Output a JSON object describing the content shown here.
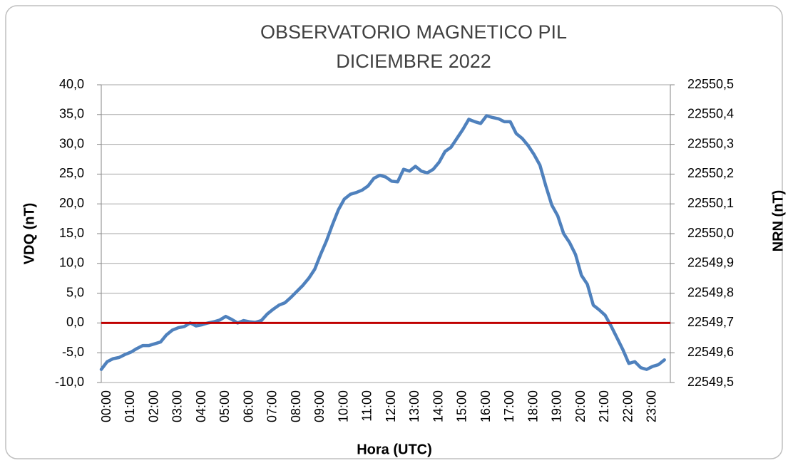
{
  "chart_data": {
    "type": "line",
    "title": "OBSERVATORIO MAGNETICO PIL",
    "subtitle": "DICIEMBRE 2022",
    "y_label": "VDQ (nT)",
    "y2_label": "NRN (nT)",
    "x_label": "Hora (UTC)",
    "xlim": [
      0,
      24
    ],
    "xticks": [
      {
        "value": 0,
        "label": "00:00"
      },
      {
        "value": 1,
        "label": "01:00"
      },
      {
        "value": 2,
        "label": "02:00"
      },
      {
        "value": 3,
        "label": "03:00"
      },
      {
        "value": 4,
        "label": "04:00"
      },
      {
        "value": 5,
        "label": "05:00"
      },
      {
        "value": 6,
        "label": "06:00"
      },
      {
        "value": 7,
        "label": "07:00"
      },
      {
        "value": 8,
        "label": "08:00"
      },
      {
        "value": 9,
        "label": "09:00"
      },
      {
        "value": 10,
        "label": "10:00"
      },
      {
        "value": 11,
        "label": "11:00"
      },
      {
        "value": 12,
        "label": "12:00"
      },
      {
        "value": 13,
        "label": "13:00"
      },
      {
        "value": 14,
        "label": "14:00"
      },
      {
        "value": 15,
        "label": "15:00"
      },
      {
        "value": 16,
        "label": "16:00"
      },
      {
        "value": 17,
        "label": "17:00"
      },
      {
        "value": 18,
        "label": "18:00"
      },
      {
        "value": 19,
        "label": "19:00"
      },
      {
        "value": 20,
        "label": "20:00"
      },
      {
        "value": 21,
        "label": "21:00"
      },
      {
        "value": 22,
        "label": "22:00"
      },
      {
        "value": 23,
        "label": "23:00"
      }
    ],
    "ylim": [
      -10,
      40
    ],
    "yticks": [
      {
        "value": -10,
        "label": "-10,0"
      },
      {
        "value": -5,
        "label": "-5,0"
      },
      {
        "value": 0,
        "label": "0,0"
      },
      {
        "value": 5,
        "label": "5,0"
      },
      {
        "value": 10,
        "label": "10,0"
      },
      {
        "value": 15,
        "label": "15,0"
      },
      {
        "value": 20,
        "label": "20,0"
      },
      {
        "value": 25,
        "label": "25,0"
      },
      {
        "value": 30,
        "label": "30,0"
      },
      {
        "value": 35,
        "label": "35,0"
      },
      {
        "value": 40,
        "label": "40,0"
      }
    ],
    "y2lim": [
      22549.5,
      22550.5
    ],
    "y2ticks": [
      {
        "value": 22549.5,
        "label": "22549,5"
      },
      {
        "value": 22549.6,
        "label": "22549,6"
      },
      {
        "value": 22549.7,
        "label": "22549,7"
      },
      {
        "value": 22549.8,
        "label": "22549,8"
      },
      {
        "value": 22549.9,
        "label": "22549,9"
      },
      {
        "value": 22550.0,
        "label": "22550,0"
      },
      {
        "value": 22550.1,
        "label": "22550,1"
      },
      {
        "value": 22550.2,
        "label": "22550,2"
      },
      {
        "value": 22550.3,
        "label": "22550,3"
      },
      {
        "value": 22550.4,
        "label": "22550,4"
      },
      {
        "value": 22550.5,
        "label": "22550,5"
      }
    ],
    "grid": true,
    "reference_lines": [
      {
        "y": 0,
        "color": "#c00000"
      }
    ],
    "x": [
      0,
      0.25,
      0.5,
      0.75,
      1,
      1.25,
      1.5,
      1.75,
      2,
      2.25,
      2.5,
      2.75,
      3,
      3.25,
      3.5,
      3.75,
      4,
      4.25,
      4.5,
      4.75,
      5,
      5.25,
      5.5,
      5.75,
      6,
      6.25,
      6.5,
      6.75,
      7,
      7.25,
      7.5,
      7.75,
      8,
      8.25,
      8.5,
      8.75,
      9,
      9.25,
      9.5,
      9.75,
      10,
      10.25,
      10.5,
      10.75,
      11,
      11.25,
      11.5,
      11.75,
      12,
      12.25,
      12.5,
      12.75,
      13,
      13.25,
      13.5,
      13.75,
      14,
      14.25,
      14.5,
      14.75,
      15,
      15.25,
      15.5,
      15.75,
      16,
      16.25,
      16.5,
      16.75,
      17,
      17.25,
      17.5,
      17.75,
      18,
      18.25,
      18.5,
      18.75,
      19,
      19.25,
      19.5,
      19.75,
      20,
      20.25,
      20.5,
      20.75,
      21,
      21.25,
      21.5,
      21.75,
      22,
      22.25,
      22.5,
      22.75,
      23,
      23.25,
      23.5,
      23.75
    ],
    "series": [
      {
        "color": "#4f81bd",
        "values": [
          -7.8,
          -6.5,
          -6,
          -5.8,
          -5.3,
          -4.9,
          -4.3,
          -3.8,
          -3.8,
          -3.5,
          -3.2,
          -2,
          -1.2,
          -0.8,
          -0.6,
          0,
          -0.5,
          -0.3,
          0,
          0.2,
          0.5,
          1.1,
          0.6,
          0,
          0.4,
          0.2,
          0.1,
          0.4,
          1.5,
          2.3,
          3,
          3.4,
          4.3,
          5.3,
          6.3,
          7.5,
          9,
          11.5,
          13.8,
          16.5,
          19,
          20.8,
          21.6,
          21.9,
          22.3,
          23,
          24.3,
          24.8,
          24.5,
          23.8,
          23.7,
          25.8,
          25.5,
          26.3,
          25.5,
          25.2,
          25.8,
          27,
          28.8,
          29.5,
          31,
          32.5,
          34.2,
          33.8,
          33.5,
          34.8,
          34.5,
          34.3,
          33.8,
          33.8,
          31.8,
          31,
          29.8,
          28.3,
          26.5,
          23,
          19.8,
          18,
          15,
          13.5,
          11.5,
          8,
          6.5,
          3,
          2.2,
          1.3,
          -0.5,
          -2.5,
          -4.5,
          -6.8,
          -6.5,
          -7.5,
          -7.8,
          -7.3,
          -7,
          -6.2
        ]
      }
    ]
  }
}
